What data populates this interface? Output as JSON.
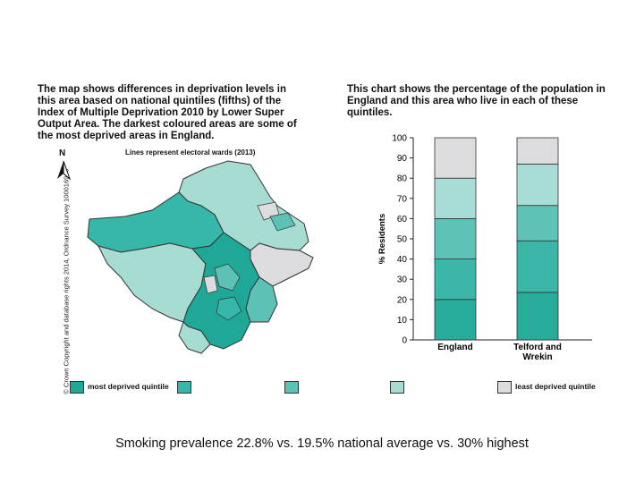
{
  "left_paragraph": "The map shows differences in deprivation levels in this area based on national quintiles (fifths) of the Index of Multiple Deprivation 2010 by Lower Super Output Area. The darkest coloured areas are some of the most deprived areas in England.",
  "right_paragraph": "This chart shows the percentage of the population in England and this area who live in each of these quintiles.",
  "map": {
    "copyright": "© Crown Copyright and database rights 2014, Ordnance Survey 100016969",
    "wards_note": "Lines represent electoral wards (2013)",
    "north_label": "N"
  },
  "legend": {
    "first_label": "most deprived quintile",
    "last_label": "least deprived quintile",
    "colors": [
      "#1fa898",
      "#36b7a9",
      "#5cc2b5",
      "#a7dcd3",
      "#dcdcde"
    ]
  },
  "chart_data": {
    "type": "bar",
    "stacked": true,
    "categories": [
      "England",
      "Telford and\nWrekin"
    ],
    "series": [
      {
        "color": "#27ab9b",
        "values": [
          20,
          23.5
        ]
      },
      {
        "color": "#3bb7aa",
        "values": [
          20,
          25.5
        ]
      },
      {
        "color": "#5ec3b7",
        "values": [
          20,
          17.5
        ]
      },
      {
        "color": "#a8ddd5",
        "values": [
          20,
          20.5
        ]
      },
      {
        "color": "#dcdcde",
        "values": [
          20,
          13
        ]
      }
    ],
    "ylabel": "% Residents",
    "ylim": [
      0,
      100
    ],
    "yticks": [
      "0",
      "10",
      "20",
      "30",
      "40",
      "50",
      "60",
      "70",
      "80",
      "90",
      "100"
    ]
  },
  "caption": "Smoking prevalence 22.8% vs. 19.5% national average vs. 30% highest"
}
